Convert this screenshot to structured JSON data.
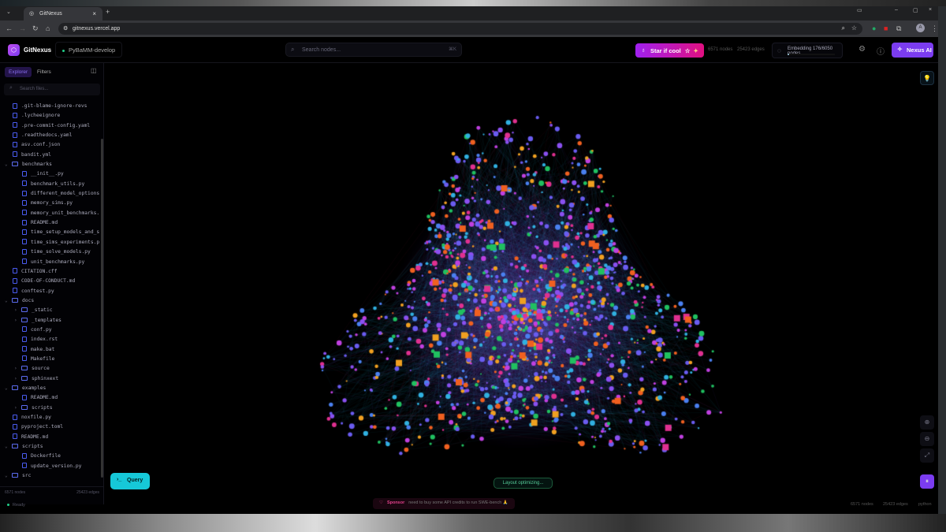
{
  "browser": {
    "tab_title": "GitNexus",
    "url": "gitnexus.vercel.app"
  },
  "header": {
    "brand": "GitNexus",
    "repo": "PyBaMM-develop",
    "search_placeholder": "Search nodes...",
    "search_shortcut": "⌘K",
    "star_label": "Star if cool",
    "nodes": "6571 nodes",
    "edges": "25423 edges",
    "embedding": "Embedding 176/6050 nodes",
    "embedding_progress": 0.029,
    "nexus_label": "Nexus AI",
    "accent": "#7b3cf0"
  },
  "sidebar": {
    "tabs": [
      "Explorer",
      "Filters"
    ],
    "search_placeholder": "Search files...",
    "tree": [
      {
        "name": ".git-blame-ignore-revs",
        "depth": 0,
        "type": "file"
      },
      {
        "name": ".lycheeignore",
        "depth": 0,
        "type": "file"
      },
      {
        "name": ".pre-commit-config.yaml",
        "depth": 0,
        "type": "file"
      },
      {
        "name": ".readthedocs.yaml",
        "depth": 0,
        "type": "file"
      },
      {
        "name": "asv.conf.json",
        "depth": 0,
        "type": "file"
      },
      {
        "name": "bandit.yml",
        "depth": 0,
        "type": "file"
      },
      {
        "name": "benchmarks",
        "depth": 0,
        "type": "folder",
        "open": true
      },
      {
        "name": "__init__.py",
        "depth": 1,
        "type": "file"
      },
      {
        "name": "benchmark_utils.py",
        "depth": 1,
        "type": "file"
      },
      {
        "name": "different_model_options…",
        "depth": 1,
        "type": "file"
      },
      {
        "name": "memory_sims.py",
        "depth": 1,
        "type": "file"
      },
      {
        "name": "memory_unit_benchmarks.…",
        "depth": 1,
        "type": "file"
      },
      {
        "name": "README.md",
        "depth": 1,
        "type": "file"
      },
      {
        "name": "time_setup_models_and_s…",
        "depth": 1,
        "type": "file"
      },
      {
        "name": "time_sims_experiments.py",
        "depth": 1,
        "type": "file"
      },
      {
        "name": "time_solve_models.py",
        "depth": 1,
        "type": "file"
      },
      {
        "name": "unit_benchmarks.py",
        "depth": 1,
        "type": "file"
      },
      {
        "name": "CITATION.cff",
        "depth": 0,
        "type": "file"
      },
      {
        "name": "CODE-OF-CONDUCT.md",
        "depth": 0,
        "type": "file"
      },
      {
        "name": "conftest.py",
        "depth": 0,
        "type": "file"
      },
      {
        "name": "docs",
        "depth": 0,
        "type": "folder",
        "open": true
      },
      {
        "name": "_static",
        "depth": 1,
        "type": "folder",
        "open": false
      },
      {
        "name": "_templates",
        "depth": 1,
        "type": "folder",
        "open": false
      },
      {
        "name": "conf.py",
        "depth": 1,
        "type": "file"
      },
      {
        "name": "index.rst",
        "depth": 1,
        "type": "file"
      },
      {
        "name": "make.bat",
        "depth": 1,
        "type": "file"
      },
      {
        "name": "Makefile",
        "depth": 1,
        "type": "file"
      },
      {
        "name": "source",
        "depth": 1,
        "type": "folder",
        "open": false
      },
      {
        "name": "sphinxext",
        "depth": 1,
        "type": "folder",
        "open": false
      },
      {
        "name": "examples",
        "depth": 0,
        "type": "folder",
        "open": true
      },
      {
        "name": "README.md",
        "depth": 1,
        "type": "file"
      },
      {
        "name": "scripts",
        "depth": 1,
        "type": "folder",
        "open": false
      },
      {
        "name": "noxfile.py",
        "depth": 0,
        "type": "file"
      },
      {
        "name": "pyproject.toml",
        "depth": 0,
        "type": "file"
      },
      {
        "name": "README.md",
        "depth": 0,
        "type": "file"
      },
      {
        "name": "scripts",
        "depth": 0,
        "type": "folder",
        "open": true
      },
      {
        "name": "Dockerfile",
        "depth": 1,
        "type": "file"
      },
      {
        "name": "update_version.py",
        "depth": 1,
        "type": "file"
      },
      {
        "name": "src",
        "depth": 0,
        "type": "folder",
        "open": true
      }
    ],
    "footer_nodes": "6571 nodes",
    "footer_edges": "25423 edges",
    "status": "Ready"
  },
  "canvas": {
    "query_label": "Query",
    "layout_status": "Layout optimizing..."
  },
  "statusbar": {
    "sponsor_label": "Sponsor",
    "sponsor_text": "need to buy some API credits to run SWE-bench 🙏",
    "nodes": "6571 nodes",
    "edges": "25423 edges",
    "language": "python"
  }
}
